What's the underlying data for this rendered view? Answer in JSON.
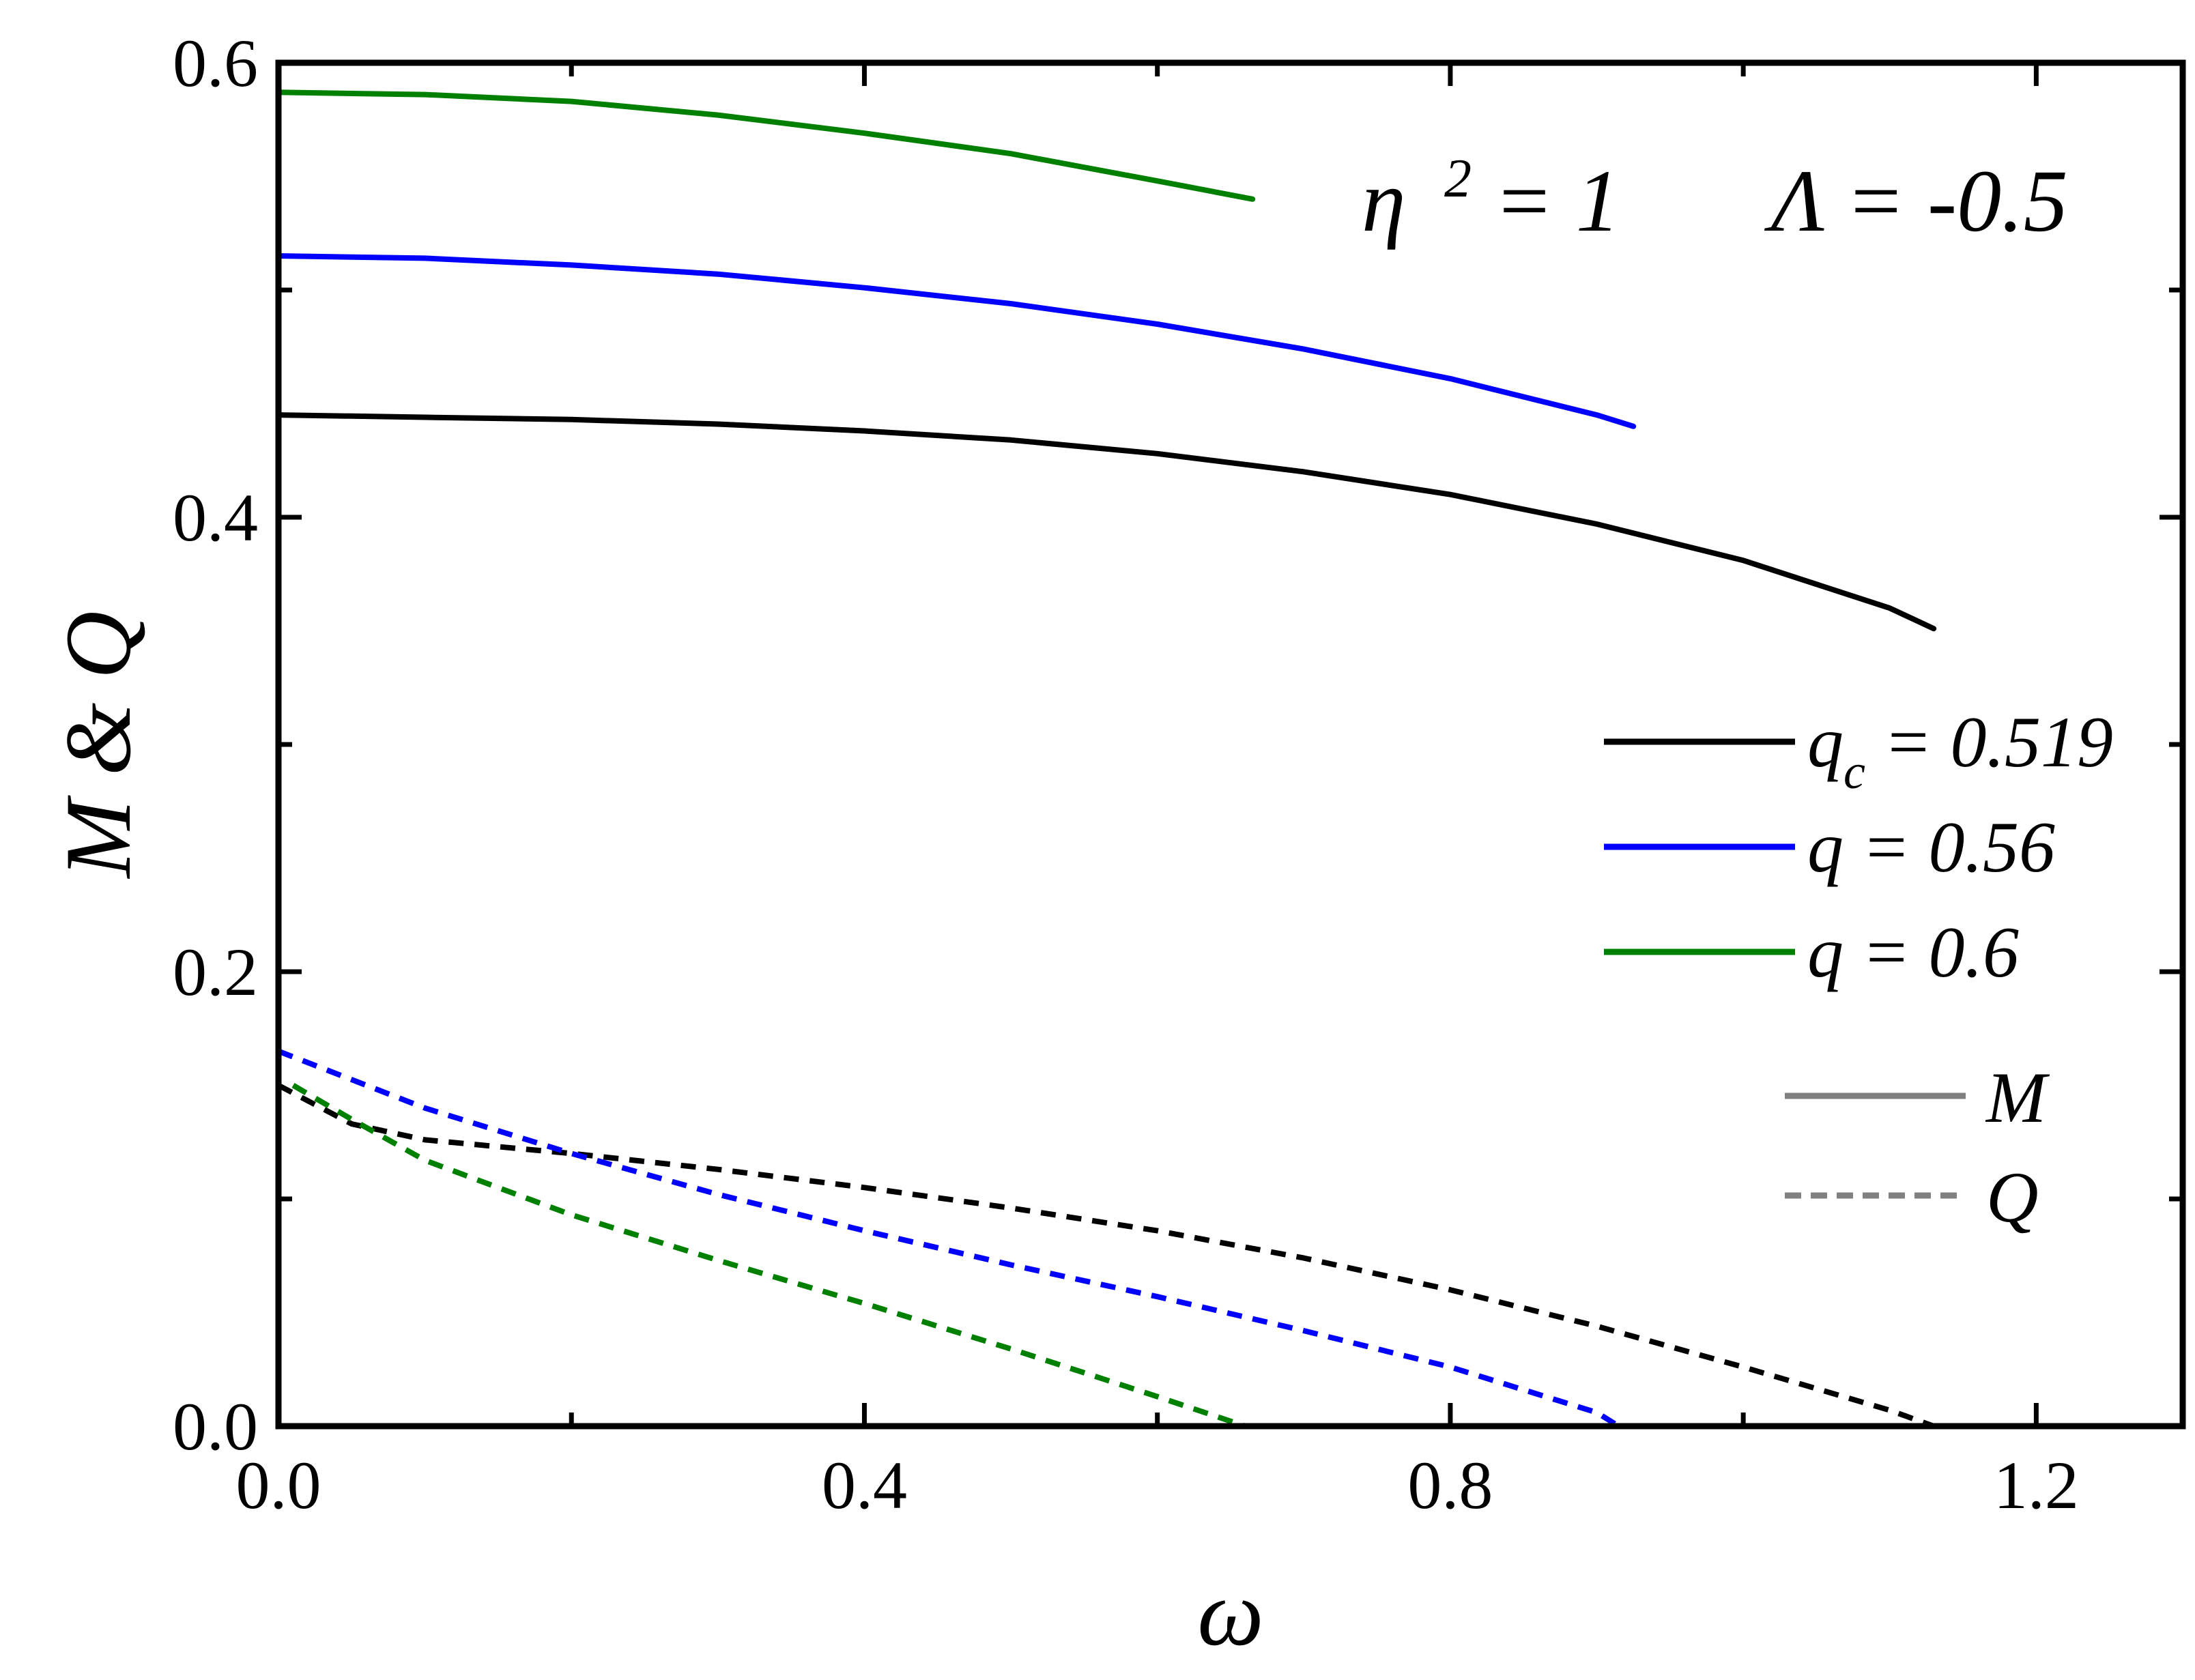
{
  "chart_data": {
    "type": "line",
    "xlabel": "ω",
    "ylabel": "M & Q",
    "xlim": [
      0.0,
      1.3
    ],
    "ylim": [
      0.0,
      0.6
    ],
    "xticks": [
      "0.0",
      "0.4",
      "0.8",
      "1.2"
    ],
    "yticks": [
      "0.0",
      "0.2",
      "0.4",
      "0.6"
    ],
    "xtick_values": [
      0.0,
      0.4,
      0.8,
      1.2
    ],
    "ytick_values": [
      0.0,
      0.2,
      0.4,
      0.6
    ],
    "grid": false,
    "legend_position": "right",
    "annotations": {
      "eta": {
        "base": "η",
        "sup": "2",
        "rest": " = 1"
      },
      "lambda": "Λ = -0.5"
    },
    "series": [
      {
        "key": "qc",
        "legend": {
          "base": "q",
          "sub": "c",
          "rest": " = 0.519"
        },
        "color": "#000000",
        "M": {
          "x": [
            0.0,
            0.1,
            0.2,
            0.3,
            0.4,
            0.5,
            0.6,
            0.7,
            0.8,
            0.9,
            1.0,
            1.1,
            1.13
          ],
          "y": [
            0.445,
            0.444,
            0.443,
            0.441,
            0.438,
            0.434,
            0.428,
            0.42,
            0.41,
            0.397,
            0.381,
            0.36,
            0.351
          ]
        },
        "Q": {
          "x": [
            0.0,
            0.05,
            0.1,
            0.2,
            0.3,
            0.4,
            0.5,
            0.6,
            0.7,
            0.8,
            0.9,
            1.0,
            1.1,
            1.13
          ],
          "y": [
            0.15,
            0.133,
            0.126,
            0.12,
            0.113,
            0.105,
            0.096,
            0.086,
            0.074,
            0.06,
            0.044,
            0.026,
            0.007,
            0.0
          ]
        }
      },
      {
        "key": "q056",
        "legend": {
          "base": "q",
          "sub": "",
          "rest": " = 0.56"
        },
        "color": "#0000ff",
        "M": {
          "x": [
            0.0,
            0.1,
            0.2,
            0.3,
            0.4,
            0.5,
            0.6,
            0.7,
            0.8,
            0.9,
            0.925
          ],
          "y": [
            0.515,
            0.514,
            0.511,
            0.507,
            0.501,
            0.494,
            0.485,
            0.474,
            0.461,
            0.445,
            0.44
          ]
        },
        "Q": {
          "x": [
            0.0,
            0.1,
            0.2,
            0.3,
            0.4,
            0.5,
            0.6,
            0.7,
            0.8,
            0.9,
            0.915
          ],
          "y": [
            0.165,
            0.14,
            0.12,
            0.102,
            0.086,
            0.071,
            0.057,
            0.042,
            0.026,
            0.006,
            0.0
          ]
        }
      },
      {
        "key": "q06",
        "legend": {
          "base": "q",
          "sub": "",
          "rest": " = 0.6"
        },
        "color": "#008000",
        "M": {
          "x": [
            0.0,
            0.1,
            0.2,
            0.3,
            0.4,
            0.5,
            0.6,
            0.665
          ],
          "y": [
            0.587,
            0.586,
            0.583,
            0.577,
            0.569,
            0.56,
            0.548,
            0.54
          ]
        },
        "Q": {
          "x": [
            0.01,
            0.05,
            0.1,
            0.2,
            0.3,
            0.4,
            0.5,
            0.6,
            0.66
          ],
          "y": [
            0.15,
            0.135,
            0.117,
            0.093,
            0.073,
            0.054,
            0.034,
            0.013,
            0.0
          ]
        }
      }
    ],
    "style_legend": [
      {
        "label": "M",
        "dash": false,
        "color": "#808080"
      },
      {
        "label": "Q",
        "dash": true,
        "color": "#808080"
      }
    ]
  }
}
